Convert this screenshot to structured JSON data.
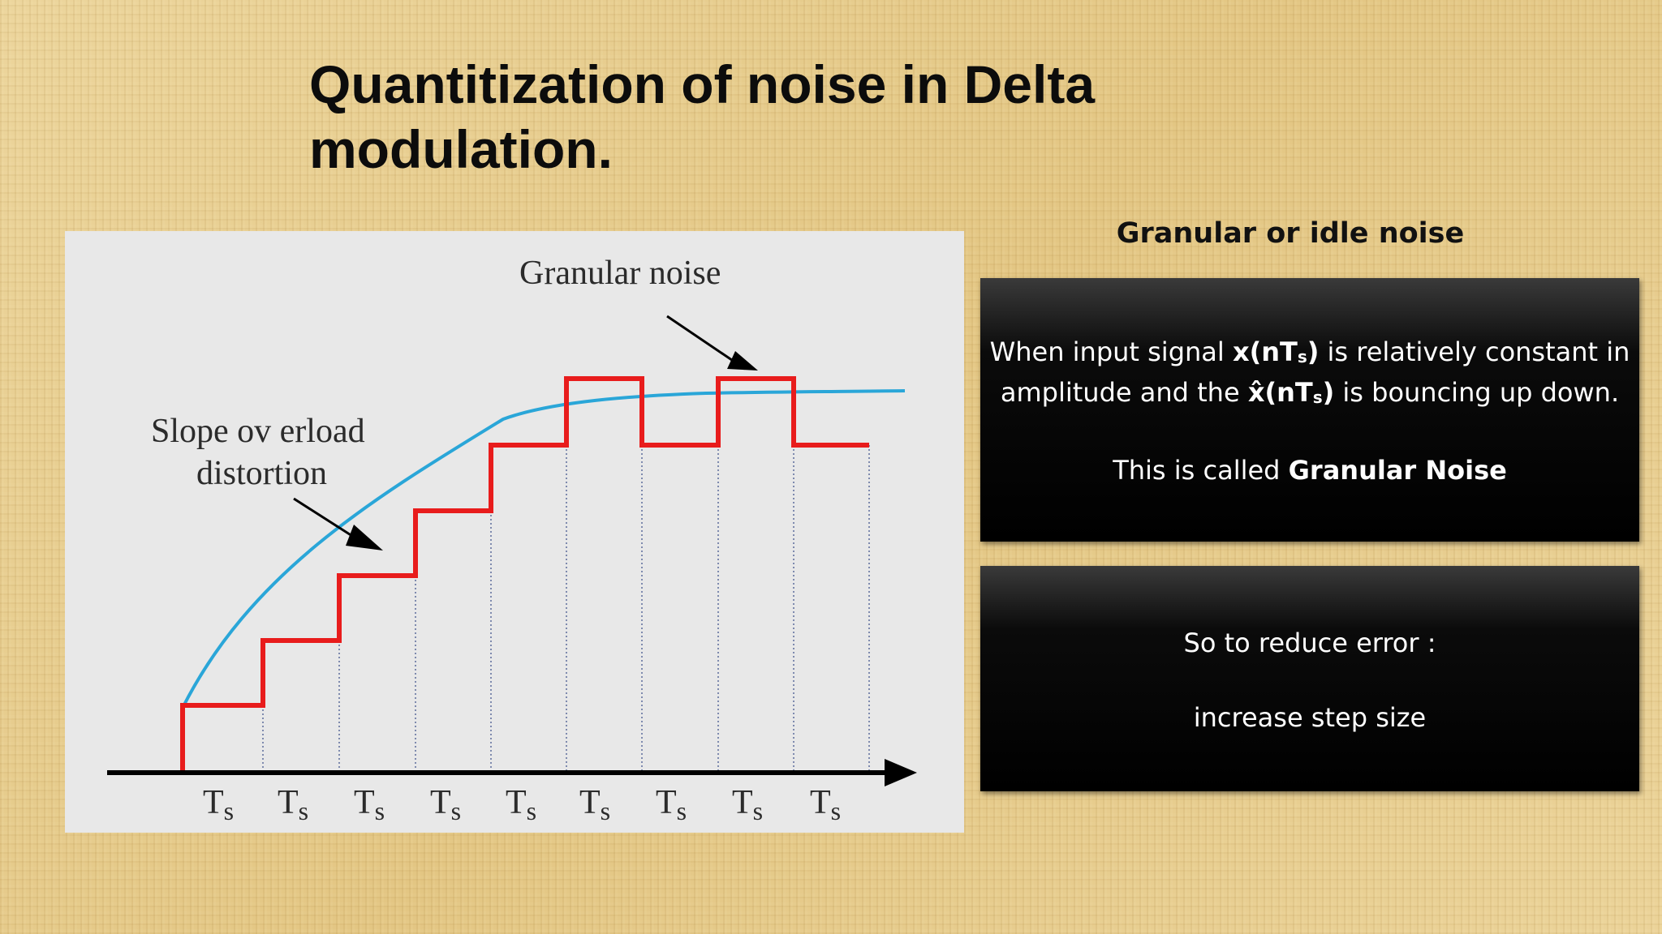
{
  "slide": {
    "title": "Quantitization of noise in Delta modulation."
  },
  "diagram": {
    "label_granular": "Granular noise",
    "label_slope_line1": "Slope ov erload",
    "label_slope_line2": "distortion",
    "tick_label": "Ts",
    "tick_count": 9,
    "colors": {
      "signal": "#2aa6d8",
      "staircase": "#e81c1c",
      "axis": "#000000",
      "background": "#e8e8e8"
    }
  },
  "side": {
    "heading": "Granular or idle noise",
    "box1": {
      "line1_a": "When input signal ",
      "line1_b": "x(nT",
      "line1_sub": "s",
      "line1_c": ")",
      "line1_d": " is relatively constant in",
      "line2_a": "amplitude and the ",
      "line2_b": "x̂(nT",
      "line2_sub": "s",
      "line2_c": ")",
      "line2_d": " is bouncing up down.",
      "line3_a": "This is called ",
      "line3_b": "Granular Noise"
    },
    "box2": {
      "line1": "So to reduce error :",
      "line2": "increase step size"
    }
  }
}
